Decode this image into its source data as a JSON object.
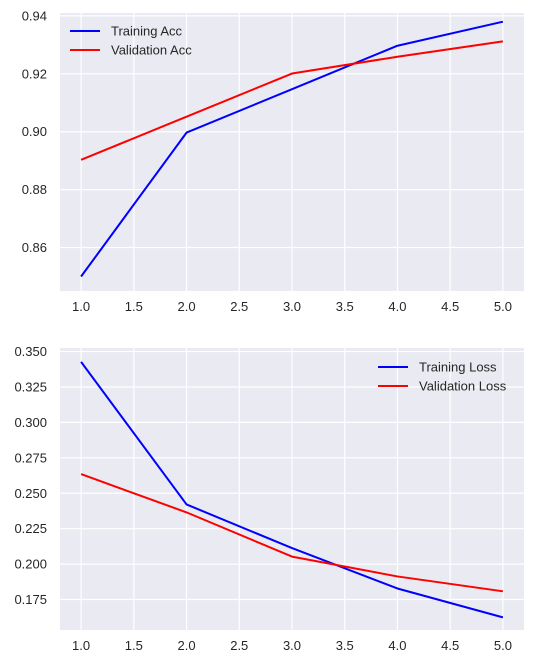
{
  "chart_data": [
    {
      "type": "line",
      "title": "",
      "xlabel": "",
      "ylabel": "",
      "xlim": [
        0.8,
        5.2
      ],
      "ylim": [
        0.845,
        0.941
      ],
      "xticks": [
        "1.0",
        "1.5",
        "2.0",
        "2.5",
        "3.0",
        "3.5",
        "4.0",
        "4.5",
        "5.0"
      ],
      "yticks": [
        "0.86",
        "0.88",
        "0.90",
        "0.92",
        "0.94"
      ],
      "legend_position": "top-left",
      "grid": true,
      "x": [
        1,
        2,
        3,
        4,
        5
      ],
      "series": [
        {
          "name": "Training Acc",
          "color": "#0000ff",
          "values": [
            0.85,
            0.8997,
            0.9147,
            0.9297,
            0.938
          ]
        },
        {
          "name": "Validation Acc",
          "color": "#ff0000",
          "values": [
            0.8903,
            0.9052,
            0.9201,
            0.9259,
            0.9312
          ]
        }
      ]
    },
    {
      "type": "line",
      "title": "",
      "xlabel": "",
      "ylabel": "",
      "xlim": [
        0.8,
        5.2
      ],
      "ylim": [
        0.1535,
        0.3525
      ],
      "xticks": [
        "1.0",
        "1.5",
        "2.0",
        "2.5",
        "3.0",
        "3.5",
        "4.0",
        "4.5",
        "5.0"
      ],
      "yticks": [
        "0.175",
        "0.200",
        "0.225",
        "0.250",
        "0.275",
        "0.300",
        "0.325",
        "0.350"
      ],
      "legend_position": "top-right",
      "grid": true,
      "x": [
        1,
        2,
        3,
        4,
        5
      ],
      "series": [
        {
          "name": "Training Loss",
          "color": "#0000ff",
          "values": [
            0.3427,
            0.2421,
            0.2113,
            0.1828,
            0.1624
          ]
        },
        {
          "name": "Validation Loss",
          "color": "#ff0000",
          "values": [
            0.2635,
            0.2365,
            0.2053,
            0.1913,
            0.1808
          ]
        }
      ]
    }
  ]
}
